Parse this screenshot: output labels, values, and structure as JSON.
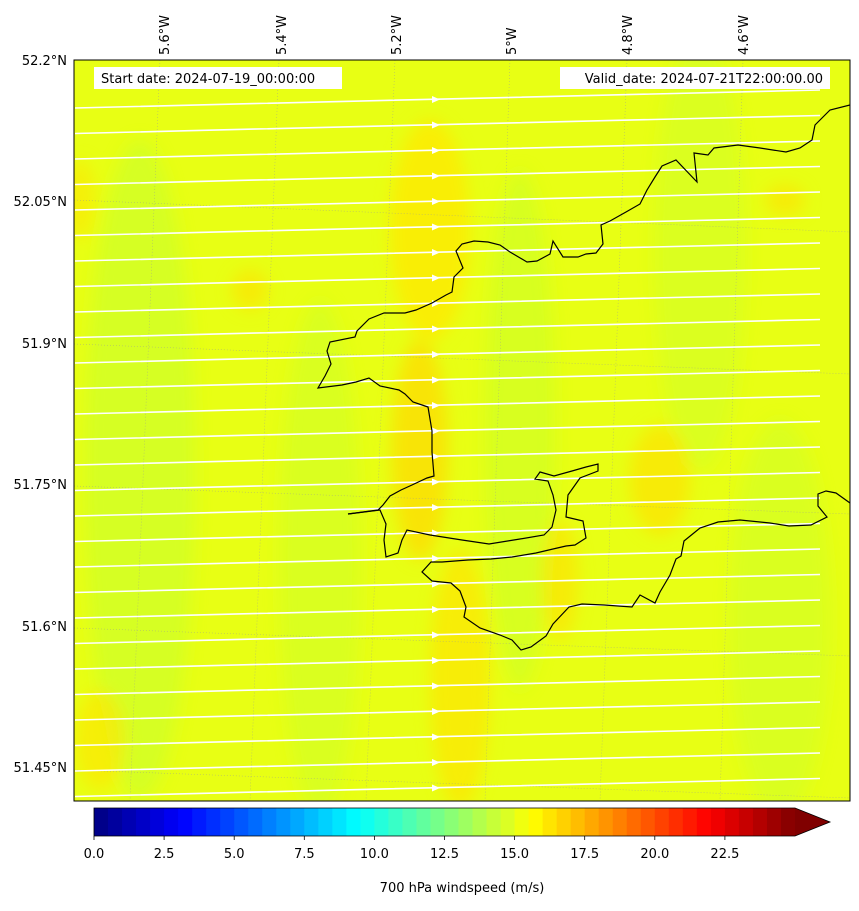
{
  "map": {
    "start_label": "Start date: 2024-07-19_00:00:00",
    "valid_label": "Valid_date: 2024-07-21T22:00:00.00",
    "lon_labels": [
      "5.6°W",
      "5.4°W",
      "5.2°W",
      "5°W",
      "4.8°W",
      "4.6°W"
    ],
    "lat_labels": [
      "52.2°N",
      "52.05°N",
      "51.9°N",
      "51.75°N",
      "51.6°N",
      "51.45°N"
    ],
    "lon_ticks": [
      -5.6,
      -5.4,
      -5.2,
      -5.0,
      -4.8,
      -4.6
    ],
    "lat_ticks": [
      52.2,
      52.05,
      51.9,
      51.75,
      51.6,
      51.45
    ],
    "extent": {
      "lon": [
        -5.75,
        -4.46
      ],
      "lat": [
        51.42,
        52.2
      ]
    },
    "field": "700 hPa windspeed",
    "background_color": "#e8ff14",
    "streamline_color": "#ffffff",
    "coastline_color": "#000000"
  },
  "colorbar": {
    "label": "700 hPa windspeed (m/s)",
    "ticks": [
      0.0,
      2.5,
      5.0,
      7.5,
      10.0,
      12.5,
      15.0,
      17.5,
      20.0,
      22.5
    ],
    "tick_labels": [
      "0.0",
      "2.5",
      "5.0",
      "7.5",
      "10.0",
      "12.5",
      "15.0",
      "17.5",
      "20.0",
      "22.5"
    ],
    "range": [
      0,
      25
    ],
    "extend": "max",
    "colormap": "jet"
  }
}
